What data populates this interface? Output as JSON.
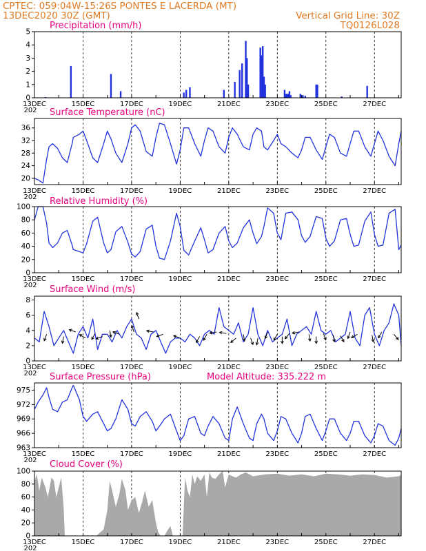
{
  "header": {
    "left_line1": "CPTEC:   059:04W-15:26S   PONTES E LACERDA (MT)",
    "left_line2": "13DEC2020 30Z (GMT)",
    "right_line2": "Vertical Grid Line: 30Z",
    "right_line3": "TQ0126L028"
  },
  "colors": {
    "line": "#2233dd",
    "bar": "#2233dd",
    "cloud": "#a9a9a9",
    "title": "#e6007e",
    "header": "#e07a20"
  },
  "x_labels": [
    "13DEC",
    "15DEC",
    "17DEC",
    "19DEC",
    "21DEC",
    "23DEC",
    "25DEC",
    "27DEC"
  ],
  "x_label_days": [
    0,
    2,
    4,
    6,
    8,
    10,
    12,
    14
  ],
  "x_year_fragment": "202",
  "x_range_days": [
    0,
    15.1
  ],
  "chart_data": [
    {
      "type": "bar",
      "title": "Precipitation (mm/h)",
      "ylim": [
        0,
        5
      ],
      "yticks": [
        0,
        1,
        2,
        3,
        4,
        5
      ],
      "x_unit": "days since 13DEC 00Z",
      "x": [
        0.45,
        1.5,
        3.15,
        3.55,
        6.15,
        6.25,
        6.4,
        7.8,
        8.25,
        8.45,
        8.55,
        8.7,
        8.75,
        8.8,
        9.3,
        9.35,
        9.4,
        9.45,
        9.5,
        10.3,
        10.35,
        10.4,
        10.45,
        10.5,
        10.55,
        10.95,
        11.05,
        11.15,
        11.6,
        11.65,
        12.65,
        13.7
      ],
      "values": [
        0.05,
        2.4,
        1.8,
        0.5,
        0.4,
        0.6,
        0.8,
        0.6,
        1.2,
        2.1,
        2.6,
        4.3,
        3.0,
        1.0,
        3.8,
        3.2,
        3.9,
        1.6,
        1.0,
        0.6,
        0.3,
        0.3,
        0.3,
        0.5,
        0.2,
        0.3,
        0.2,
        0.15,
        1.0,
        1.0,
        0.1,
        0.9
      ]
    },
    {
      "type": "line",
      "title": "Surface Temperature (nC)",
      "ylim": [
        18,
        39
      ],
      "yticks": [
        20,
        24,
        28,
        32,
        36
      ],
      "x_unit": "days since 13DEC 00Z",
      "x": [
        0.0,
        0.15,
        0.35,
        0.5,
        0.6,
        0.75,
        0.95,
        1.15,
        1.35,
        1.55,
        1.6,
        1.85,
        2.0,
        2.15,
        2.4,
        2.6,
        2.85,
        3.0,
        3.15,
        3.35,
        3.6,
        3.85,
        4.0,
        4.15,
        4.35,
        4.6,
        4.85,
        5.0,
        5.15,
        5.35,
        5.6,
        5.85,
        6.0,
        6.15,
        6.35,
        6.6,
        6.85,
        7.0,
        7.15,
        7.35,
        7.6,
        7.85,
        8.0,
        8.15,
        8.35,
        8.6,
        8.85,
        9.0,
        9.15,
        9.35,
        9.45,
        9.6,
        9.85,
        10.0,
        10.15,
        10.35,
        10.6,
        10.85,
        11.0,
        11.15,
        11.35,
        11.6,
        11.85,
        12.0,
        12.15,
        12.35,
        12.6,
        12.85,
        13.0,
        13.15,
        13.35,
        13.6,
        13.85,
        14.0,
        14.15,
        14.35,
        14.6,
        14.85,
        15.0,
        15.1
      ],
      "values": [
        20,
        19.5,
        18.5,
        26,
        30,
        31,
        29.5,
        26.5,
        25,
        31,
        33,
        34,
        35,
        32,
        26.5,
        25,
        31,
        35,
        32.5,
        28,
        25,
        31,
        36,
        37,
        35,
        28.5,
        27,
        33,
        37.5,
        37,
        31,
        24.5,
        29,
        36,
        36,
        31,
        27,
        32,
        36,
        35,
        30,
        28,
        33,
        36,
        34,
        30,
        29,
        34,
        36,
        35,
        30,
        29,
        32,
        34,
        31,
        30,
        28,
        26.5,
        29,
        33,
        33,
        29,
        26,
        30,
        34,
        33,
        28,
        27,
        31,
        35,
        35,
        30,
        27,
        31,
        35,
        32,
        27,
        24,
        31,
        35
      ]
    },
    {
      "type": "line",
      "title": "Relative Humidity (%)",
      "ylim": [
        0,
        100
      ],
      "yticks": [
        0,
        20,
        40,
        60,
        80,
        100
      ],
      "x_unit": "days since 13DEC 00Z",
      "x": [
        0.0,
        0.15,
        0.35,
        0.5,
        0.6,
        0.75,
        0.95,
        1.15,
        1.35,
        1.55,
        1.6,
        1.85,
        2.0,
        2.15,
        2.4,
        2.6,
        2.85,
        3.0,
        3.15,
        3.35,
        3.6,
        3.85,
        4.0,
        4.15,
        4.35,
        4.6,
        4.85,
        5.0,
        5.15,
        5.35,
        5.6,
        5.85,
        6.0,
        6.15,
        6.35,
        6.6,
        6.85,
        7.0,
        7.15,
        7.35,
        7.6,
        7.85,
        8.0,
        8.15,
        8.35,
        8.6,
        8.85,
        9.0,
        9.15,
        9.35,
        9.45,
        9.6,
        9.85,
        10.0,
        10.15,
        10.35,
        10.6,
        10.85,
        11.0,
        11.15,
        11.35,
        11.6,
        11.85,
        12.0,
        12.15,
        12.35,
        12.6,
        12.85,
        13.0,
        13.15,
        13.35,
        13.6,
        13.85,
        14.0,
        14.15,
        14.35,
        14.6,
        14.85,
        15.0,
        15.1
      ],
      "values": [
        80,
        100,
        100,
        75,
        45,
        38,
        45,
        60,
        64,
        42,
        35,
        32,
        30,
        44,
        78,
        84,
        45,
        30,
        35,
        62,
        70,
        46,
        28,
        24,
        32,
        66,
        72,
        40,
        22,
        20,
        48,
        90,
        70,
        34,
        27,
        48,
        68,
        50,
        30,
        35,
        60,
        70,
        48,
        38,
        45,
        68,
        80,
        60,
        44,
        55,
        70,
        98,
        90,
        60,
        50,
        90,
        92,
        80,
        56,
        46,
        55,
        85,
        82,
        52,
        40,
        48,
        80,
        82,
        58,
        40,
        42,
        78,
        92,
        58,
        40,
        42,
        90,
        96,
        35,
        42
      ]
    },
    {
      "type": "line",
      "title": "Surface Wind (m/s)",
      "ylim": [
        0,
        8.5
      ],
      "yticks": [
        0,
        2,
        4,
        6,
        8
      ],
      "x_unit": "days since 13DEC 00Z",
      "x": [
        0.0,
        0.2,
        0.4,
        0.6,
        0.8,
        1.0,
        1.2,
        1.4,
        1.6,
        1.8,
        2.0,
        2.2,
        2.4,
        2.6,
        2.8,
        3.0,
        3.2,
        3.4,
        3.6,
        3.8,
        4.0,
        4.2,
        4.4,
        4.6,
        4.8,
        5.0,
        5.2,
        5.4,
        5.6,
        5.8,
        6.0,
        6.2,
        6.4,
        6.6,
        6.8,
        7.0,
        7.2,
        7.4,
        7.6,
        7.8,
        8.0,
        8.2,
        8.4,
        8.6,
        8.8,
        9.0,
        9.2,
        9.4,
        9.6,
        9.8,
        10.0,
        10.2,
        10.4,
        10.6,
        10.8,
        11.0,
        11.2,
        11.4,
        11.6,
        11.8,
        12.0,
        12.2,
        12.4,
        12.6,
        12.8,
        13.0,
        13.2,
        13.4,
        13.6,
        13.8,
        14.0,
        14.2,
        14.4,
        14.6,
        14.8,
        15.0,
        15.1
      ],
      "values": [
        3.0,
        2.5,
        6.5,
        4.5,
        2.0,
        3.0,
        4.0,
        2.5,
        1.0,
        3.5,
        4.5,
        3.0,
        5.5,
        1.5,
        3.5,
        3.5,
        2.5,
        4.0,
        3.0,
        4.5,
        5.5,
        3.5,
        3.0,
        1.5,
        3.5,
        4.0,
        2.5,
        1.0,
        2.5,
        3.0,
        3.0,
        2.5,
        3.5,
        3.0,
        2.0,
        3.5,
        4.0,
        3.5,
        7.0,
        4.5,
        4.0,
        3.5,
        5.0,
        2.5,
        3.5,
        7.0,
        3.5,
        2.0,
        4.0,
        2.5,
        3.0,
        3.5,
        5.5,
        2.0,
        3.5,
        4.0,
        4.5,
        3.5,
        6.5,
        4.0,
        3.5,
        4.0,
        2.5,
        3.0,
        3.5,
        6.5,
        3.0,
        2.0,
        6.0,
        7.0,
        3.5,
        2.0,
        4.0,
        5.0,
        7.5,
        6.0,
        2.0
      ]
    },
    {
      "type": "line",
      "title": "Surface Pressure (hPa)",
      "subtitle": "Model Altitude: 335.222  m",
      "ylim": [
        963,
        976.5
      ],
      "yticks": [
        963,
        966,
        969,
        972,
        975
      ],
      "x_unit": "days since 13DEC 00Z",
      "x": [
        0.0,
        0.15,
        0.35,
        0.5,
        0.6,
        0.75,
        0.95,
        1.15,
        1.35,
        1.55,
        1.6,
        1.85,
        2.0,
        2.15,
        2.4,
        2.6,
        2.85,
        3.0,
        3.15,
        3.35,
        3.6,
        3.85,
        4.0,
        4.15,
        4.35,
        4.6,
        4.85,
        5.0,
        5.15,
        5.35,
        5.6,
        5.85,
        6.0,
        6.15,
        6.35,
        6.6,
        6.85,
        7.0,
        7.15,
        7.35,
        7.6,
        7.85,
        8.0,
        8.15,
        8.35,
        8.6,
        8.85,
        9.0,
        9.15,
        9.35,
        9.45,
        9.6,
        9.85,
        10.0,
        10.15,
        10.35,
        10.6,
        10.85,
        11.0,
        11.15,
        11.35,
        11.6,
        11.85,
        12.0,
        12.15,
        12.35,
        12.6,
        12.85,
        13.0,
        13.15,
        13.35,
        13.6,
        13.85,
        14.0,
        14.15,
        14.35,
        14.6,
        14.85,
        15.0,
        15.1
      ],
      "values": [
        971,
        972.5,
        974,
        975.5,
        973.5,
        971,
        970.5,
        972.5,
        973,
        975.5,
        976,
        973,
        969.5,
        968.5,
        970,
        970.5,
        968,
        966.5,
        967,
        969,
        973,
        971,
        968,
        967.5,
        969.5,
        970.5,
        968.5,
        966.5,
        967.5,
        969,
        970,
        966.5,
        964.5,
        965.5,
        969,
        969.5,
        966,
        965.5,
        967.5,
        969.5,
        968,
        965,
        964.5,
        969,
        971.5,
        968,
        965,
        964.5,
        968,
        970,
        969,
        966,
        964.5,
        966.5,
        969.5,
        969,
        966,
        964,
        966,
        969.5,
        970,
        967,
        964.5,
        966.5,
        969,
        969,
        966,
        964.5,
        966,
        968.5,
        968.5,
        965.5,
        964,
        965.5,
        968,
        967.5,
        964.5,
        963.5,
        965,
        967
      ]
    },
    {
      "type": "area",
      "title": "Cloud Cover (%)",
      "ylim": [
        0,
        100
      ],
      "yticks": [
        0,
        20,
        40,
        60,
        80,
        100
      ],
      "x_unit": "days since 13DEC 00Z",
      "x": [
        0.0,
        0.1,
        0.2,
        0.3,
        0.35,
        0.45,
        0.55,
        0.7,
        0.8,
        0.9,
        1.0,
        1.1,
        1.2,
        1.25,
        1.35,
        1.45,
        1.55,
        1.7,
        1.9,
        2.1,
        2.3,
        2.45,
        2.55,
        2.7,
        2.85,
        3.0,
        3.1,
        3.2,
        3.35,
        3.5,
        3.6,
        3.75,
        3.85,
        4.0,
        4.15,
        4.3,
        4.45,
        4.55,
        4.7,
        4.85,
        5.0,
        5.1,
        5.2,
        5.35,
        5.5,
        5.6,
        5.7,
        5.85,
        6.0,
        6.1,
        6.2,
        6.3,
        6.4,
        6.5,
        6.6,
        6.7,
        6.85,
        7.0,
        7.1,
        7.2,
        7.3,
        7.45,
        7.6,
        7.75,
        7.85,
        8.0,
        8.15,
        8.3,
        8.5,
        8.7,
        9.0,
        9.5,
        10.0,
        10.5,
        11.0,
        11.5,
        12.0,
        12.5,
        13.0,
        13.5,
        14.0,
        14.5,
        15.0,
        15.1
      ],
      "values": [
        85,
        95,
        70,
        90,
        85,
        75,
        60,
        90,
        85,
        60,
        75,
        90,
        45,
        0,
        0,
        0,
        0,
        0,
        0,
        0,
        0,
        0,
        0,
        5,
        10,
        40,
        85,
        70,
        45,
        65,
        88,
        70,
        40,
        55,
        60,
        35,
        55,
        70,
        45,
        55,
        20,
        5,
        0,
        0,
        10,
        15,
        0,
        0,
        0,
        0,
        90,
        70,
        60,
        95,
        80,
        92,
        85,
        95,
        60,
        98,
        90,
        88,
        95,
        100,
        75,
        95,
        92,
        90,
        95,
        98,
        92,
        95,
        96,
        93,
        95,
        92,
        96,
        95,
        93,
        95,
        94,
        90,
        92,
        94
      ]
    }
  ],
  "wind_arrows": {
    "x": [
      0.5,
      1.2,
      1.7,
      2.1,
      2.5,
      2.8,
      3.1,
      3.5,
      4.1,
      4.3,
      4.9,
      5.3,
      6.0,
      6.8,
      7.1,
      7.5,
      7.9,
      8.3,
      8.6,
      8.9,
      9.2,
      9.6,
      10.0,
      10.2,
      10.5,
      10.9,
      11.3,
      11.6,
      11.9,
      12.3,
      12.6,
      13.0,
      13.3,
      13.9,
      14.3,
      14.8
    ],
    "value": [
      3.5,
      3.2,
      3.8,
      3.0,
      3.6,
      3.2,
      4.0,
      3.5,
      3.8,
      5.5,
      3.8,
      3.5,
      3.0,
      3.2,
      3.5,
      3.8,
      3.6,
      3.0,
      3.5,
      3.0,
      3.0,
      3.8,
      3.5,
      3.2,
      3.6,
      3.8,
      3.5,
      3.2,
      3.6,
      3.4,
      3.3,
      3.8,
      3.5,
      3.4,
      3.8,
      3.5
    ],
    "angle_deg": [
      110,
      100,
      200,
      210,
      120,
      160,
      80,
      200,
      250,
      250,
      190,
      160,
      200,
      120,
      120,
      170,
      190,
      140,
      80,
      70,
      100,
      110,
      120,
      90,
      130,
      170,
      80,
      90,
      70,
      80,
      60,
      110,
      150,
      80,
      120,
      50
    ]
  }
}
